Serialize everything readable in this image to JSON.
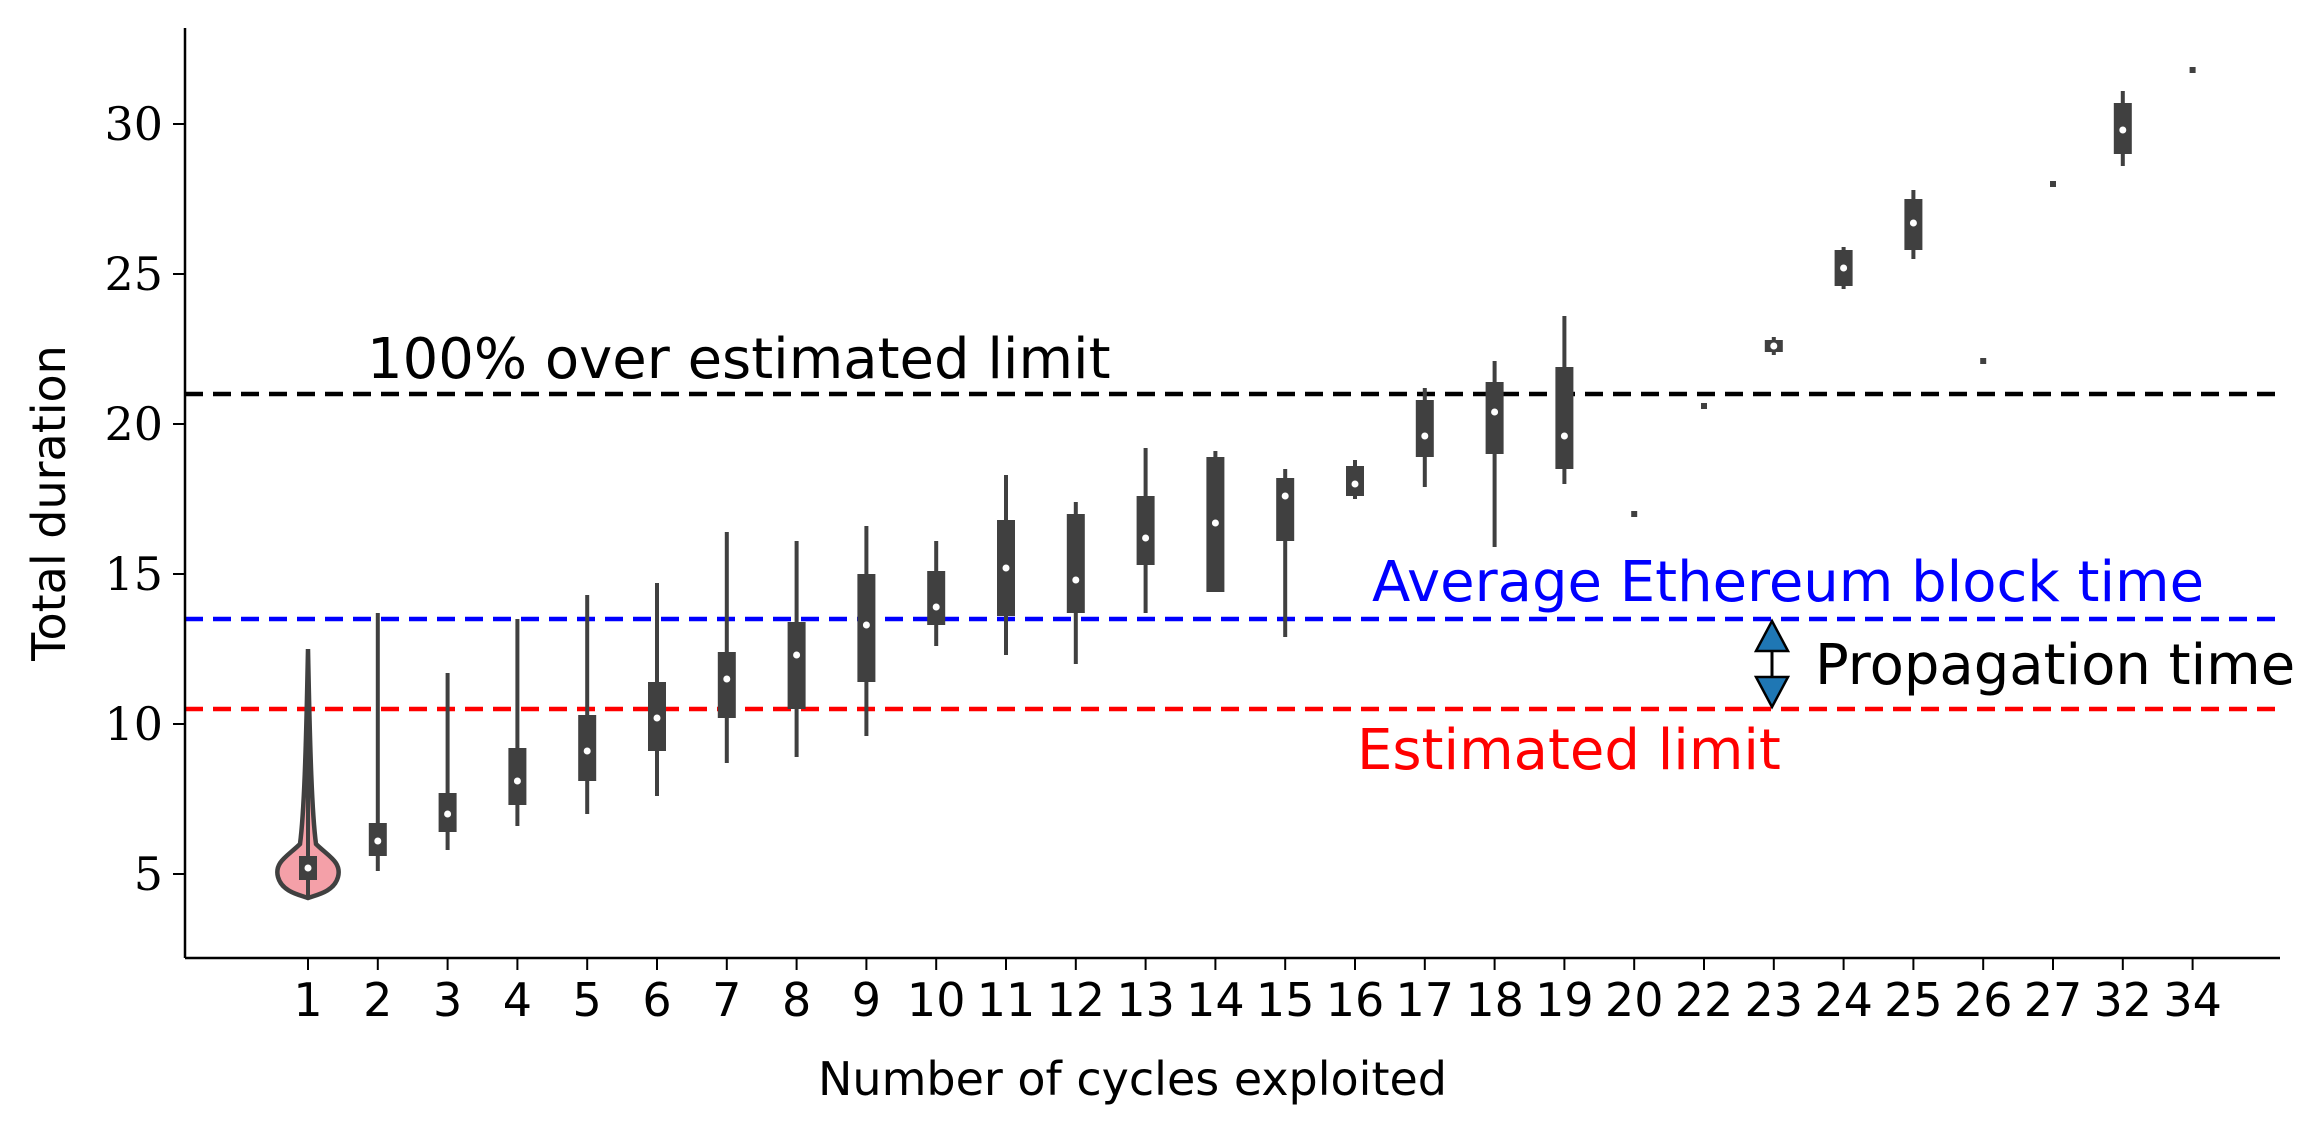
{
  "chart_data": {
    "type": "violin",
    "xlabel": "Number of cycles exploited",
    "ylabel": "Total duration",
    "ylim": [
      2.2,
      33.2
    ],
    "yticks": [
      5,
      10,
      15,
      20,
      25,
      30
    ],
    "categories": [
      "1",
      "2",
      "3",
      "4",
      "5",
      "6",
      "7",
      "8",
      "9",
      "10",
      "11",
      "12",
      "13",
      "14",
      "15",
      "16",
      "17",
      "18",
      "19",
      "20",
      "22",
      "23",
      "24",
      "25",
      "26",
      "27",
      "32",
      "34"
    ],
    "distributions": [
      {
        "category": "1",
        "min": 4.2,
        "q1": 4.8,
        "median": 5.2,
        "q3": 5.6,
        "max": 12.5,
        "highlighted": true
      },
      {
        "category": "2",
        "min": 5.1,
        "q1": 5.6,
        "median": 6.1,
        "q3": 6.7,
        "max": 13.7
      },
      {
        "category": "3",
        "min": 5.8,
        "q1": 6.4,
        "median": 7.0,
        "q3": 7.7,
        "max": 11.7
      },
      {
        "category": "4",
        "min": 6.6,
        "q1": 7.3,
        "median": 8.1,
        "q3": 9.2,
        "max": 13.5
      },
      {
        "category": "5",
        "min": 7.0,
        "q1": 8.1,
        "median": 9.1,
        "q3": 10.3,
        "max": 14.3
      },
      {
        "category": "6",
        "min": 7.6,
        "q1": 9.1,
        "median": 10.2,
        "q3": 11.4,
        "max": 14.7
      },
      {
        "category": "7",
        "min": 8.7,
        "q1": 10.2,
        "median": 11.5,
        "q3": 12.4,
        "max": 16.4
      },
      {
        "category": "8",
        "min": 8.9,
        "q1": 10.5,
        "median": 12.3,
        "q3": 13.4,
        "max": 16.1
      },
      {
        "category": "9",
        "min": 9.6,
        "q1": 11.4,
        "median": 13.3,
        "q3": 15.0,
        "max": 16.6
      },
      {
        "category": "10",
        "min": 12.6,
        "q1": 13.3,
        "median": 13.9,
        "q3": 15.1,
        "max": 16.1
      },
      {
        "category": "11",
        "min": 12.3,
        "q1": 13.6,
        "median": 15.2,
        "q3": 16.8,
        "max": 18.3
      },
      {
        "category": "12",
        "min": 12.0,
        "q1": 13.7,
        "median": 14.8,
        "q3": 17.0,
        "max": 17.4
      },
      {
        "category": "13",
        "min": 13.7,
        "q1": 15.3,
        "median": 16.2,
        "q3": 17.6,
        "max": 19.2
      },
      {
        "category": "14",
        "min": 14.4,
        "q1": 14.4,
        "median": 16.7,
        "q3": 18.9,
        "max": 19.1
      },
      {
        "category": "15",
        "min": 12.9,
        "q1": 16.1,
        "median": 17.6,
        "q3": 18.2,
        "max": 18.5
      },
      {
        "category": "16",
        "min": 17.5,
        "q1": 17.6,
        "median": 18.0,
        "q3": 18.6,
        "max": 18.8
      },
      {
        "category": "17",
        "min": 17.9,
        "q1": 18.9,
        "median": 19.6,
        "q3": 20.8,
        "max": 21.2
      },
      {
        "category": "18",
        "min": 15.9,
        "q1": 19.0,
        "median": 20.4,
        "q3": 21.4,
        "max": 22.1
      },
      {
        "category": "19",
        "min": 18.0,
        "q1": 18.5,
        "median": 19.6,
        "q3": 21.9,
        "max": 23.6
      },
      {
        "category": "20",
        "value": 17.0
      },
      {
        "category": "22",
        "value": 20.6
      },
      {
        "category": "23",
        "min": 22.3,
        "q1": 22.4,
        "median": 22.6,
        "q3": 22.8,
        "max": 22.9
      },
      {
        "category": "24",
        "min": 24.5,
        "q1": 24.6,
        "median": 25.2,
        "q3": 25.8,
        "max": 25.9
      },
      {
        "category": "25",
        "min": 25.5,
        "q1": 25.8,
        "median": 26.7,
        "q3": 27.5,
        "max": 27.8
      },
      {
        "category": "26",
        "value": 22.1
      },
      {
        "category": "27",
        "value": 28.0
      },
      {
        "category": "32",
        "min": 28.6,
        "q1": 29.0,
        "median": 29.8,
        "q3": 30.7,
        "max": 31.1
      },
      {
        "category": "34",
        "value": 31.8
      }
    ],
    "reference_lines": [
      {
        "label": "100% over estimated limit",
        "value": 21.0,
        "color": "#000000"
      },
      {
        "label": "Average Ethereum block time",
        "value": 13.5,
        "color": "#0000ff"
      },
      {
        "label": "Estimated limit",
        "value": 10.5,
        "color": "#ff0000"
      }
    ],
    "annotation": {
      "label": "Propagation time",
      "from": 10.5,
      "to": 13.5,
      "arrow_color": "#1f77b4"
    },
    "colors": {
      "violin": "#404040",
      "highlight_fill": "#f4a0a8",
      "median_dot": "#ffffff"
    }
  }
}
